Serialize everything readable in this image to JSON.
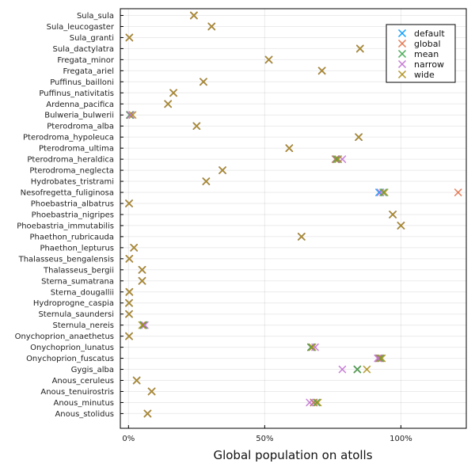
{
  "chart_data": {
    "type": "scatter",
    "xlabel": "Global population on atolls",
    "xlim": [
      -0.03,
      1.24
    ],
    "x_ticks": [
      0,
      0.5,
      1.0
    ],
    "x_tick_labels": [
      "0%",
      "50%",
      "100%"
    ],
    "grid": true,
    "legend_position": "top-right",
    "categories": [
      "Sula_sula",
      "Sula_leucogaster",
      "Sula_granti",
      "Sula_dactylatra",
      "Fregata_minor",
      "Fregata_ariel",
      "Puffinus_bailloni",
      "Puffinus_nativitatis",
      "Ardenna_pacifica",
      "Bulweria_bulwerii",
      "Pterodroma_alba",
      "Pterodroma_hypoleuca",
      "Pterodroma_ultima",
      "Pterodroma_heraldica",
      "Pterodroma_neglecta",
      "Hydrobates_tristrami",
      "Nesofregetta_fuliginosa",
      "Phoebastria_albatrus",
      "Phoebastria_nigripes",
      "Phoebastria_immutabilis",
      "Phaethon_rubricauda",
      "Phaethon_lepturus",
      "Thalasseus_bengalensis",
      "Thalasseus_bergii",
      "Sterna_sumatrana",
      "Sterna_dougallii",
      "Hydroprogne_caspia",
      "Sternula_saundersi",
      "Sternula_nereis",
      "Onychoprion_anaethetus",
      "Onychoprion_lunatus",
      "Onychoprion_fuscatus",
      "Gygis_alba",
      "Anous_ceruleus",
      "Anous_tenuirostris",
      "Anous_minutus",
      "Anous_stolidus"
    ],
    "series": [
      {
        "name": "default",
        "color": "#009AFA",
        "values": [
          0.24,
          0.305,
          0.003,
          0.85,
          0.515,
          0.71,
          0.275,
          0.165,
          0.145,
          0.005,
          0.25,
          0.845,
          0.59,
          0.76,
          0.345,
          0.285,
          0.92,
          0.002,
          0.97,
          1.0,
          0.635,
          0.02,
          0.003,
          0.05,
          0.05,
          0.003,
          0.002,
          0.002,
          0.055,
          0.002,
          0.67,
          0.92,
          0.84,
          0.03,
          0.085,
          0.68,
          0.07
        ]
      },
      {
        "name": "global",
        "color": "#E36F47",
        "values": [
          0.24,
          0.305,
          0.003,
          0.85,
          0.515,
          0.71,
          0.275,
          0.165,
          0.145,
          0.005,
          0.25,
          0.845,
          0.59,
          0.76,
          0.345,
          0.285,
          1.21,
          0.002,
          0.97,
          1.0,
          0.635,
          0.02,
          0.003,
          0.05,
          0.05,
          0.003,
          0.002,
          0.002,
          0.055,
          0.002,
          0.67,
          0.92,
          0.84,
          0.03,
          0.085,
          0.68,
          0.07
        ]
      },
      {
        "name": "mean",
        "color": "#3EA44E",
        "values": [
          0.24,
          0.305,
          0.003,
          0.85,
          0.515,
          0.71,
          0.275,
          0.165,
          0.145,
          0.005,
          0.25,
          0.845,
          0.59,
          0.765,
          0.345,
          0.285,
          0.935,
          0.002,
          0.97,
          1.0,
          0.635,
          0.02,
          0.003,
          0.05,
          0.05,
          0.003,
          0.002,
          0.002,
          0.055,
          0.002,
          0.67,
          0.925,
          0.84,
          0.03,
          0.085,
          0.69,
          0.07
        ]
      },
      {
        "name": "narrow",
        "color": "#C271D2",
        "values": [
          0.24,
          0.305,
          0.003,
          0.85,
          0.515,
          0.71,
          0.275,
          0.165,
          0.145,
          0.008,
          0.25,
          0.845,
          0.59,
          0.785,
          0.345,
          0.285,
          0.925,
          0.002,
          0.97,
          1.0,
          0.635,
          0.02,
          0.003,
          0.05,
          0.05,
          0.003,
          0.002,
          0.002,
          0.06,
          0.002,
          0.685,
          0.915,
          0.785,
          0.03,
          0.085,
          0.665,
          0.07
        ]
      },
      {
        "name": "wide",
        "color": "#AC8D18",
        "values": [
          0.24,
          0.305,
          0.003,
          0.85,
          0.515,
          0.71,
          0.275,
          0.165,
          0.145,
          0.015,
          0.25,
          0.845,
          0.59,
          0.77,
          0.345,
          0.285,
          0.94,
          0.002,
          0.97,
          1.0,
          0.635,
          0.02,
          0.003,
          0.05,
          0.05,
          0.003,
          0.002,
          0.002,
          0.05,
          0.002,
          0.675,
          0.93,
          0.875,
          0.03,
          0.085,
          0.695,
          0.07
        ]
      }
    ]
  }
}
